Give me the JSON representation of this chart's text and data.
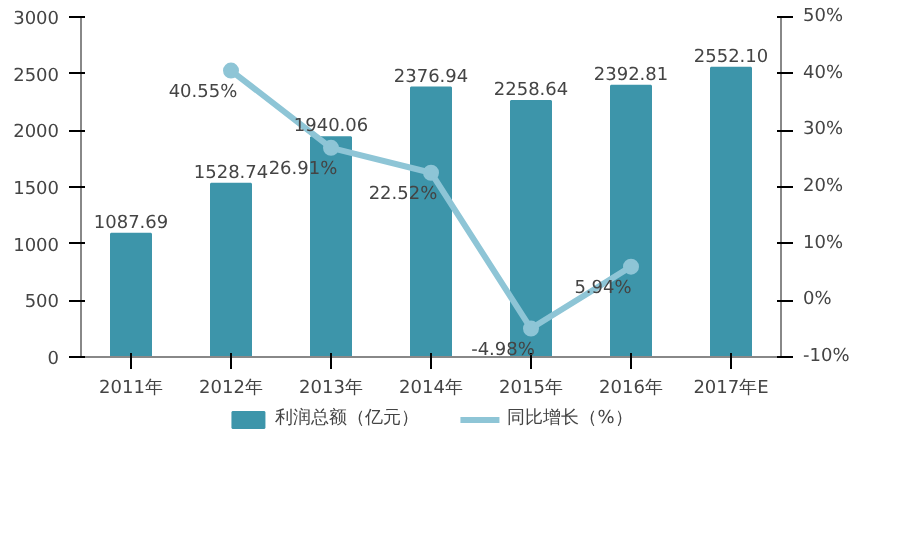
{
  "chart_data": {
    "type": "bar",
    "categories": [
      "2011年",
      "2012年",
      "2013年",
      "2014年",
      "2015年",
      "2016年",
      "2017年E"
    ],
    "series": [
      {
        "name": "利润总额（亿元）",
        "color": "#3d95aa",
        "values": [
          1087.69,
          1528.74,
          1940.06,
          2376.94,
          2258.64,
          2392.81,
          2552.1
        ],
        "value_labels": [
          "1087.69",
          "1528.74",
          "1940.06",
          "2376.94",
          "2258.64",
          "2392.81",
          "2552.10"
        ]
      },
      {
        "name": "同比增长（%）",
        "type": "line",
        "axis": "y2",
        "color": "#8ec5d6",
        "marker": "circle",
        "values": [
          null,
          40.55,
          26.91,
          22.52,
          -4.98,
          5.94,
          null
        ],
        "value_labels": [
          null,
          "40.55%",
          "26.91%",
          "22.52%",
          "-4.98%",
          "5.94%",
          null
        ]
      }
    ],
    "ylim": [
      0,
      3000
    ],
    "yticks": [
      0,
      500,
      1000,
      1500,
      2000,
      2500,
      3000
    ],
    "y2lim": [
      -10,
      50
    ],
    "y2ticks": [
      {
        "value": -10,
        "label": "-10%"
      },
      {
        "value": 0,
        "label": "0%"
      },
      {
        "value": 10,
        "label": "10%"
      },
      {
        "value": 20,
        "label": "20%"
      },
      {
        "value": 30,
        "label": "30%"
      },
      {
        "value": 40,
        "label": "40%"
      },
      {
        "value": 50,
        "label": "50%"
      }
    ],
    "grid": false,
    "legend": "bottom"
  }
}
